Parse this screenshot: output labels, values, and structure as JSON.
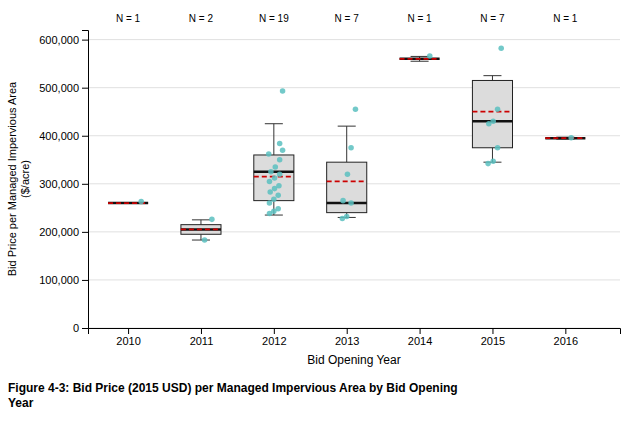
{
  "chart_data": {
    "type": "box",
    "title": "Figure 4-3: Bid Price (2015 USD) per Managed Impervious Area by Bid Opening\nYear",
    "xlabel": "Bid Opening Year",
    "ylabel": "Bid Price per Managed Impervious Area\n($/acre)",
    "x": [
      2010,
      2011,
      2012,
      2013,
      2014,
      2015,
      2016
    ],
    "n_labels": [
      "N = 1",
      "N = 2",
      "N = 19",
      "N = 7",
      "N = 1",
      "N = 7",
      "N = 1"
    ],
    "box": {
      "q1": [
        260000,
        195000,
        265000,
        240000,
        560000,
        375000,
        395000
      ],
      "median": [
        260000,
        205000,
        325000,
        260000,
        560000,
        430000,
        395000
      ],
      "q3": [
        260000,
        215000,
        360000,
        345000,
        560000,
        515000,
        395000
      ],
      "whislo": [
        260000,
        183000,
        235000,
        230000,
        555000,
        345000,
        393000
      ],
      "whishi": [
        260000,
        225000,
        425000,
        420000,
        565000,
        525000,
        397000
      ],
      "color": "#DCDCDC"
    },
    "mean": {
      "values": [
        260000,
        205000,
        315000,
        305000,
        560000,
        450000,
        395000
      ],
      "color": "#CC0000",
      "line_style": "dashed"
    },
    "points": {
      "type": "scatter",
      "color": "#5BBFBF",
      "marker": "circle",
      "x": [
        2010.18,
        2011.15,
        2011.05,
        2012.12,
        2012.08,
        2012.12,
        2011.93,
        2012.08,
        2012.02,
        2011.96,
        2012.08,
        2012.01,
        2011.94,
        2012.07,
        2012.01,
        2011.95,
        2012.06,
        2012.0,
        2011.94,
        2012.06,
        2012.0,
        2011.94,
        2013.12,
        2013.06,
        2013.01,
        2012.95,
        2013.06,
        2013.0,
        2012.94,
        2014.14,
        2015.12,
        2015.07,
        2015.01,
        2014.95,
        2015.07,
        2015.01,
        2014.94,
        2016.08
      ],
      "y": [
        263000,
        226000,
        183000,
        493000,
        384000,
        370000,
        362000,
        350000,
        335000,
        325000,
        320000,
        312000,
        305000,
        296000,
        290000,
        283000,
        276000,
        268000,
        260000,
        248000,
        243000,
        238000,
        455000,
        375000,
        320000,
        265000,
        260000,
        232000,
        228000,
        566000,
        582000,
        455000,
        430000,
        425000,
        375000,
        347000,
        342000,
        396000
      ]
    },
    "xlim": [
      2009.45,
      2016.75
    ],
    "xticks": [
      2010,
      2011,
      2012,
      2013,
      2014,
      2015,
      2016
    ],
    "ylim": [
      0,
      620000
    ],
    "yticks": [
      0,
      {
        "value": 100000,
        "label": "100,000"
      },
      {
        "value": 200000,
        "label": "200,000"
      },
      {
        "value": 300000,
        "label": "300,000"
      },
      {
        "value": 400000,
        "label": "400,000"
      },
      {
        "value": 500000,
        "label": "500,000"
      },
      {
        "value": 600000,
        "label": "600,000"
      }
    ],
    "grid": true
  }
}
